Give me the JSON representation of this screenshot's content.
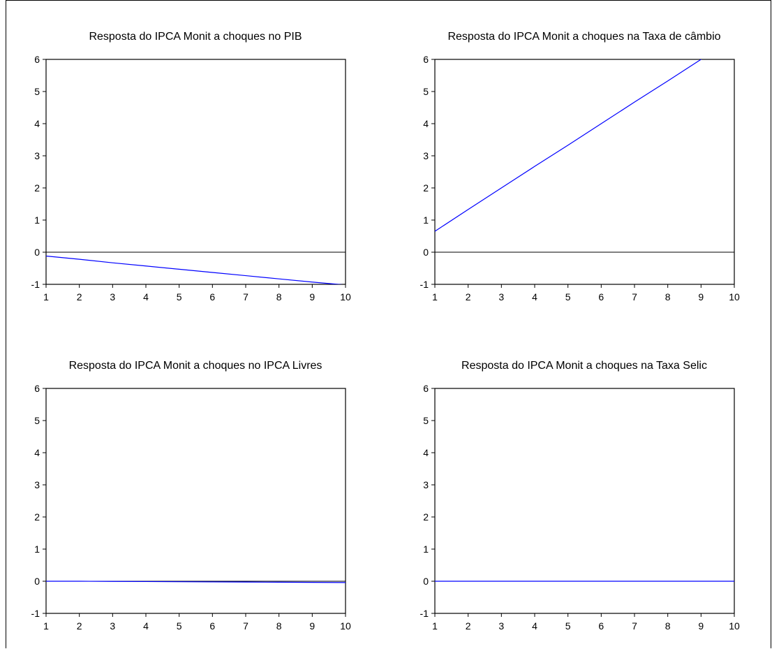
{
  "chart_data": [
    {
      "type": "line",
      "title": "Resposta do IPCA Monit a choques no PIB",
      "x": [
        1,
        2,
        3,
        4,
        5,
        6,
        7,
        8,
        9,
        10
      ],
      "xlim": [
        1,
        10
      ],
      "ylim": [
        -1,
        6
      ],
      "yticks": [
        -1,
        0,
        1,
        2,
        3,
        4,
        5,
        6
      ],
      "xticks": [
        1,
        2,
        3,
        4,
        5,
        6,
        7,
        8,
        9,
        10
      ],
      "zero_line": true,
      "series": [
        {
          "values": [
            -0.12,
            -0.22,
            -0.33,
            -0.43,
            -0.53,
            -0.63,
            -0.73,
            -0.83,
            -0.93,
            -1.02
          ],
          "color": "#0000ff"
        }
      ]
    },
    {
      "type": "line",
      "title": "Resposta do IPCA Monit a choques na Taxa de câmbio",
      "x": [
        1,
        2,
        3,
        4,
        5,
        6,
        7,
        8,
        9,
        10
      ],
      "xlim": [
        1,
        10
      ],
      "ylim": [
        -1,
        6
      ],
      "yticks": [
        -1,
        0,
        1,
        2,
        3,
        4,
        5,
        6
      ],
      "xticks": [
        1,
        2,
        3,
        4,
        5,
        6,
        7,
        8,
        9,
        10
      ],
      "zero_line": true,
      "series": [
        {
          "values": [
            0.65,
            1.33,
            2.0,
            2.67,
            3.33,
            4.0,
            4.67,
            5.33,
            6.0,
            6.67
          ],
          "color": "#0000ff"
        }
      ]
    },
    {
      "type": "line",
      "title": "Resposta do IPCA Monit a choques no IPCA Livres",
      "x": [
        1,
        2,
        3,
        4,
        5,
        6,
        7,
        8,
        9,
        10
      ],
      "xlim": [
        1,
        10
      ],
      "ylim": [
        -1,
        6
      ],
      "yticks": [
        -1,
        0,
        1,
        2,
        3,
        4,
        5,
        6
      ],
      "xticks": [
        1,
        2,
        3,
        4,
        5,
        6,
        7,
        8,
        9,
        10
      ],
      "zero_line": true,
      "series": [
        {
          "values": [
            0.0,
            0.0,
            -0.005,
            -0.01,
            -0.015,
            -0.02,
            -0.025,
            -0.03,
            -0.035,
            -0.04
          ],
          "color": "#0000ff"
        }
      ]
    },
    {
      "type": "line",
      "title": "Resposta do IPCA Monit a choques na Taxa Selic",
      "x": [
        1,
        2,
        3,
        4,
        5,
        6,
        7,
        8,
        9,
        10
      ],
      "xlim": [
        1,
        10
      ],
      "ylim": [
        -1,
        6
      ],
      "yticks": [
        -1,
        0,
        1,
        2,
        3,
        4,
        5,
        6
      ],
      "xticks": [
        1,
        2,
        3,
        4,
        5,
        6,
        7,
        8,
        9,
        10
      ],
      "zero_line": true,
      "series": [
        {
          "values": [
            0.0,
            0.0,
            0.0,
            0.0,
            0.0,
            0.0,
            0.0,
            0.0,
            0.0,
            0.0
          ],
          "color": "#0000ff"
        }
      ]
    }
  ]
}
